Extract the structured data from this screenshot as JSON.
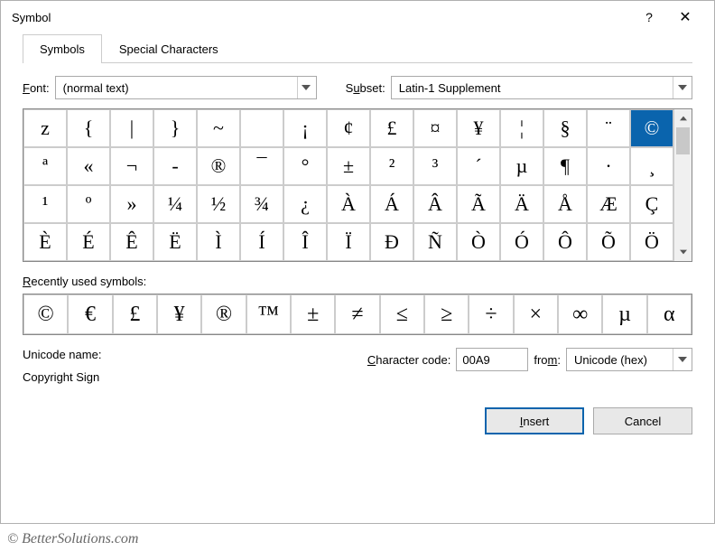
{
  "window": {
    "title": "Symbol"
  },
  "tabs": {
    "symbols": "Symbols",
    "special": "Special Characters"
  },
  "font": {
    "label": "Font:",
    "value": "(normal text)"
  },
  "subset": {
    "label": "Subset:",
    "value": "Latin-1 Supplement"
  },
  "grid": {
    "selected_index": 14,
    "cells": [
      "z",
      "{",
      "|",
      "}",
      "~",
      "",
      "¡",
      "¢",
      "£",
      "¤",
      "¥",
      "¦",
      "§",
      "¨",
      "©",
      "ª",
      "«",
      "¬",
      "-",
      "®",
      "¯",
      "°",
      "±",
      "²",
      "³",
      "´",
      "µ",
      "¶",
      "·",
      "¸",
      "¹",
      "º",
      "»",
      "¼",
      "½",
      "¾",
      "¿",
      "À",
      "Á",
      "Â",
      "Ã",
      "Ä",
      "Å",
      "Æ",
      "Ç",
      "È",
      "É",
      "Ê",
      "Ë",
      "Ì",
      "Í",
      "Î",
      "Ï",
      "Ð",
      "Ñ",
      "Ò",
      "Ó",
      "Ô",
      "Õ",
      "Ö"
    ]
  },
  "recent": {
    "label": "Recently used symbols:",
    "cells": [
      "©",
      "€",
      "£",
      "¥",
      "®",
      "™",
      "±",
      "≠",
      "≤",
      "≥",
      "÷",
      "×",
      "∞",
      "µ",
      "α"
    ]
  },
  "meta": {
    "unicode_label": "Unicode name:",
    "unicode_value": "Copyright Sign",
    "code_label": "Character code:",
    "code_value": "00A9",
    "from_label": "from:",
    "from_value": "Unicode (hex)"
  },
  "buttons": {
    "insert": "Insert",
    "cancel": "Cancel"
  },
  "watermark": "© BetterSolutions.com"
}
